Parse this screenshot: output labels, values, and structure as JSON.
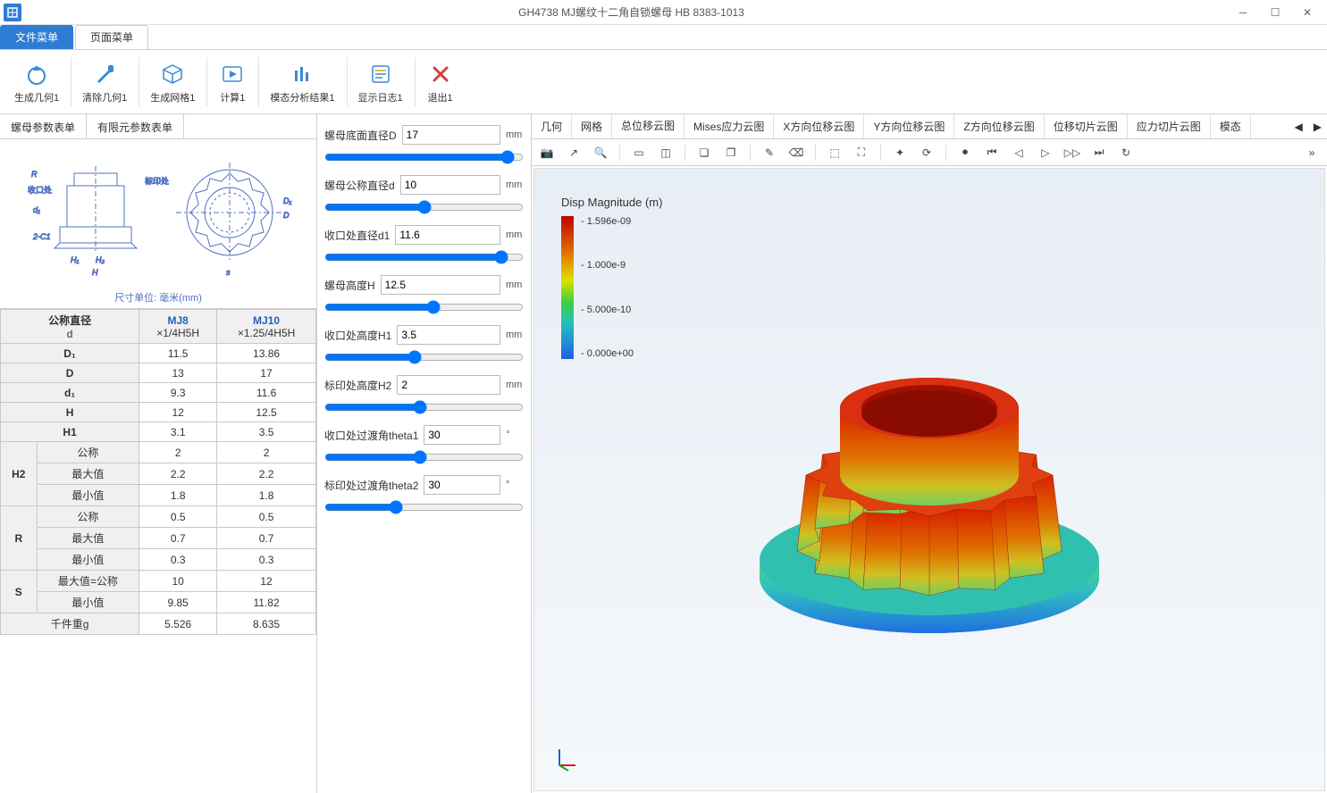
{
  "window": {
    "title": "GH4738 MJ螺纹十二角自锁螺母 HB 8383-1013"
  },
  "menuTabs": [
    {
      "label": "文件菜单",
      "active": true
    },
    {
      "label": "页面菜单",
      "active": false
    }
  ],
  "ribbon": [
    {
      "label": "生成几何1",
      "icon": "circle-drop",
      "color": "#3a8ad6"
    },
    {
      "label": "清除几何1",
      "icon": "brush",
      "color": "#3a8ad6"
    },
    {
      "label": "生成网格1",
      "icon": "cube",
      "color": "#3a8ad6"
    },
    {
      "label": "计算1",
      "icon": "play-frame",
      "color": "#3a8ad6"
    },
    {
      "label": "模态分析结果1",
      "icon": "bars",
      "color": "#3a8ad6"
    },
    {
      "label": "显示日志1",
      "icon": "log",
      "color": "#3a8ad6"
    },
    {
      "label": "退出1",
      "icon": "x",
      "color": "#d04040"
    }
  ],
  "paramTabs": [
    {
      "label": "螺母参数表单"
    },
    {
      "label": "有限元参数表单"
    }
  ],
  "diagramCaption": "尺寸单位: 毫米(mm)",
  "specTable": {
    "headerTop": {
      "label": "公称直径",
      "sub": "d"
    },
    "cols": [
      {
        "name": "MJ8",
        "sub": "×1/4H5H"
      },
      {
        "name": "MJ10",
        "sub": "×1.25/4H5H"
      }
    ],
    "rows": [
      {
        "label": "D₁",
        "vals": [
          "11.5",
          "13.86"
        ]
      },
      {
        "label": "D",
        "vals": [
          "13",
          "17"
        ]
      },
      {
        "label": "d₁",
        "vals": [
          "9.3",
          "11.6"
        ]
      },
      {
        "label": "H",
        "vals": [
          "12",
          "12.5"
        ]
      },
      {
        "label": "H1",
        "vals": [
          "3.1",
          "3.5"
        ]
      }
    ],
    "groups": [
      {
        "group": "H2",
        "sub": [
          {
            "label": "公称",
            "vals": [
              "2",
              "2"
            ]
          },
          {
            "label": "最大值",
            "vals": [
              "2.2",
              "2.2"
            ]
          },
          {
            "label": "最小值",
            "vals": [
              "1.8",
              "1.8"
            ]
          }
        ]
      },
      {
        "group": "R",
        "sub": [
          {
            "label": "公称",
            "vals": [
              "0.5",
              "0.5"
            ]
          },
          {
            "label": "最大值",
            "vals": [
              "0.7",
              "0.7"
            ]
          },
          {
            "label": "最小值",
            "vals": [
              "0.3",
              "0.3"
            ]
          }
        ]
      },
      {
        "group": "S",
        "sub": [
          {
            "label": "最大值=公称",
            "vals": [
              "10",
              "12"
            ]
          },
          {
            "label": "最小值",
            "vals": [
              "9.85",
              "11.82"
            ]
          }
        ]
      }
    ],
    "footer": {
      "label": "千件重g",
      "vals": [
        "5.526",
        "8.635"
      ]
    }
  },
  "params": [
    {
      "label": "螺母底面直径D",
      "value": "17",
      "unit": "mm",
      "slider": 95
    },
    {
      "label": "螺母公称直径d",
      "value": "10",
      "unit": "mm",
      "slider": 50
    },
    {
      "label": "收口处直径d1",
      "value": "11.6",
      "unit": "mm",
      "slider": 92
    },
    {
      "label": "螺母高度H",
      "value": "12.5",
      "unit": "mm",
      "slider": 55
    },
    {
      "label": "收口处高度H1",
      "value": "3.5",
      "unit": "mm",
      "slider": 45
    },
    {
      "label": "标印处高度H2",
      "value": "2",
      "unit": "mm",
      "slider": 48
    },
    {
      "label": "收口处过渡角theta1",
      "value": "30",
      "unit": "°",
      "slider": 48
    },
    {
      "label": "标印处过渡角theta2",
      "value": "30",
      "unit": "°",
      "slider": 35
    }
  ],
  "viewTabs": [
    "几何",
    "网格",
    "总位移云图",
    "Mises应力云图",
    "X方向位移云图",
    "Y方向位移云图",
    "Z方向位移云图",
    "位移切片云图",
    "应力切片云图",
    "模态"
  ],
  "activeViewTab": 2,
  "legend": {
    "title": "Disp Magnitude (m)",
    "ticks": [
      "1.596e-09",
      "1.000e-9",
      "5.000e-10",
      "0.000e+00"
    ]
  },
  "colors": {
    "accent": "#2e7cd6",
    "bg_canvas_top": "#e8eef5",
    "bg_canvas_bottom": "#f5f8fb"
  }
}
